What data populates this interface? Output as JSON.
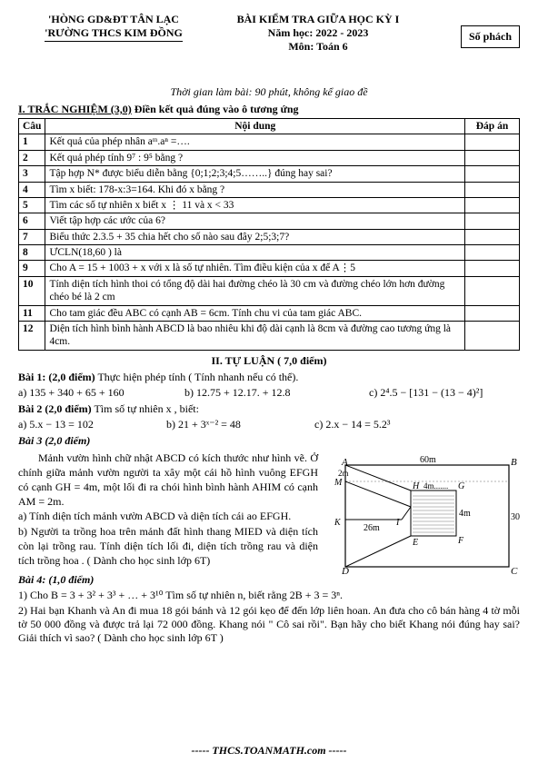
{
  "header": {
    "dept": "'HÒNG GD&ĐT TÂN LẠC",
    "school": "'RƯỜNG THCS KIM ĐỒNG",
    "title": "BÀI KIỂM TRA GIỮA HỌC KỲ I",
    "year": "Năm học: 2022 - 2023",
    "subject": "Môn: Toán 6",
    "phach": "Số phách",
    "time": "Thời gian làm bài: 90 phút, không kể giao đề"
  },
  "section1": {
    "label": "I.   TRẮC NGHIỆM (3,0)",
    "instr": " Điền kết quả đúng vào ô tương ứng",
    "cols": {
      "c1": "Câu",
      "c2": "Nội dung",
      "c3": "Đáp án"
    },
    "rows": [
      {
        "n": "1",
        "q": "Kết quả của phép nhân aᵐ.aⁿ =…."
      },
      {
        "n": "2",
        "q": "Kết quả phép tính 9⁷ : 9⁵ bằng ?"
      },
      {
        "n": "3",
        "q": "Tập hợp N* được biểu diễn bằng {0;1;2;3;4;5……..} đúng hay sai?"
      },
      {
        "n": "4",
        "q": "Tìm x biết: 178-x:3=164. Khi đó x bằng ?"
      },
      {
        "n": "5",
        "q": "Tìm các số tự nhiên x biết x ⋮ 11 và  x < 33"
      },
      {
        "n": "6",
        "q": "Viết tập hợp các ước của 6?"
      },
      {
        "n": "7",
        "q": "Biểu thức 2.3.5 + 35 chia hết cho số nào sau đây 2;5;3;7?"
      },
      {
        "n": "8",
        "q": "ƯCLN(18,60 ) là"
      },
      {
        "n": "9",
        "q": "Cho A = 15 + 1003 + x với x là số tự nhiên. Tìm điều kiện của x để A⋮5"
      },
      {
        "n": "10",
        "q": "Tính diện tích hình thoi có tổng độ dài hai đường chéo là 30 cm và đường chéo lớn hơn đường chéo bé là 2 cm"
      },
      {
        "n": "11",
        "q": "Cho tam giác đều ABC có cạnh AB = 6cm. Tính chu vi của tam giác ABC."
      },
      {
        "n": "12",
        "q": "Diện tích hình bình hành ABCD là bao nhiêu khi độ dài cạnh là 8cm và đường cao tương ứng là 4cm."
      }
    ]
  },
  "section2": {
    "label": "II. TỰ LUẬN ( 7,0 điểm)"
  },
  "bai1": {
    "title": "Bài 1: (2,0 điểm)",
    "desc": " Thực hiện phép tính ( Tính nhanh nếu có thể).",
    "a": "a) 135 + 340 + 65 + 160",
    "b": "b) 12.75  +  12.17.  +  12.8",
    "c": "c) 2⁴.5 − [131 − (13 − 4)²]"
  },
  "bai2": {
    "title": "Bài 2 (2,0 điểm)",
    "desc": " Tìm số tự nhiên x , biết:",
    "a": "a)  5.x − 13 = 102",
    "b": "b)  21 + 3ˣ⁻² = 48",
    "c": "c)  2.x  −  14  =   5.2³"
  },
  "bai3": {
    "title": "Bài 3 (2,0 điểm)",
    "p1": "Mảnh vườn hình chữ nhật ABCD có kích thước như hình vẽ. Ở chính giữa mảnh vườn người ta xây một cái hồ hình vuông EFGH có cạnh GH = 4m, một lối đi ra chói hình bình hành AHIM có cạnh AM = 2m.",
    "pa": "a) Tính diện tích mảnh vườn ABCD và diện tích cái ao EFGH.",
    "pb": "b) Người ta trồng hoa trên mảnh đất hình thang MIED và diện tích còn lại trồng rau. Tính diện tích lối đi, diện tích trồng rau và diện tích trồng hoa . ( Dành cho học sinh lớp 6T)",
    "diagram": {
      "outer_w": 200,
      "outer_h": 128,
      "labels": {
        "A": "A",
        "B": "B",
        "C": "C",
        "D": "D",
        "M": "M",
        "K": "K",
        "H": "H",
        "G": "G",
        "E": "E",
        "F": "F",
        "I": "I"
      },
      "dims": {
        "top": "60m",
        "right": "30m",
        "KI": "26m",
        "side2m": "2m",
        "GF": "4m",
        "HG": "4m......."
      },
      "colors": {
        "line": "#000000",
        "fill_wave": "#888888"
      }
    }
  },
  "bai4": {
    "title": "Bài 4: (1,0 điểm)",
    "p1": "1) Cho B = 3 + 3² + 3³ + … + 3¹⁰  Tìm số tự nhiên n, biết rằng 2B + 3 = 3ⁿ.",
    "p2": "2) Hai bạn Khanh và An đi mua 18 gói bánh và 12 gói kẹo để đến lớp liên hoan. An đưa cho cô bán hàng 4 tờ mỗi tờ 50 000 đồng và được trả lại 72 000 đồng. Khang nói \" Cô sai rồi\". Bạn hãy cho biết Khang nói đúng hay sai? Giải thích vì sao? ( Dành cho học sinh lớp 6T )"
  },
  "footer": "----- THCS.TOANMATH.com -----"
}
